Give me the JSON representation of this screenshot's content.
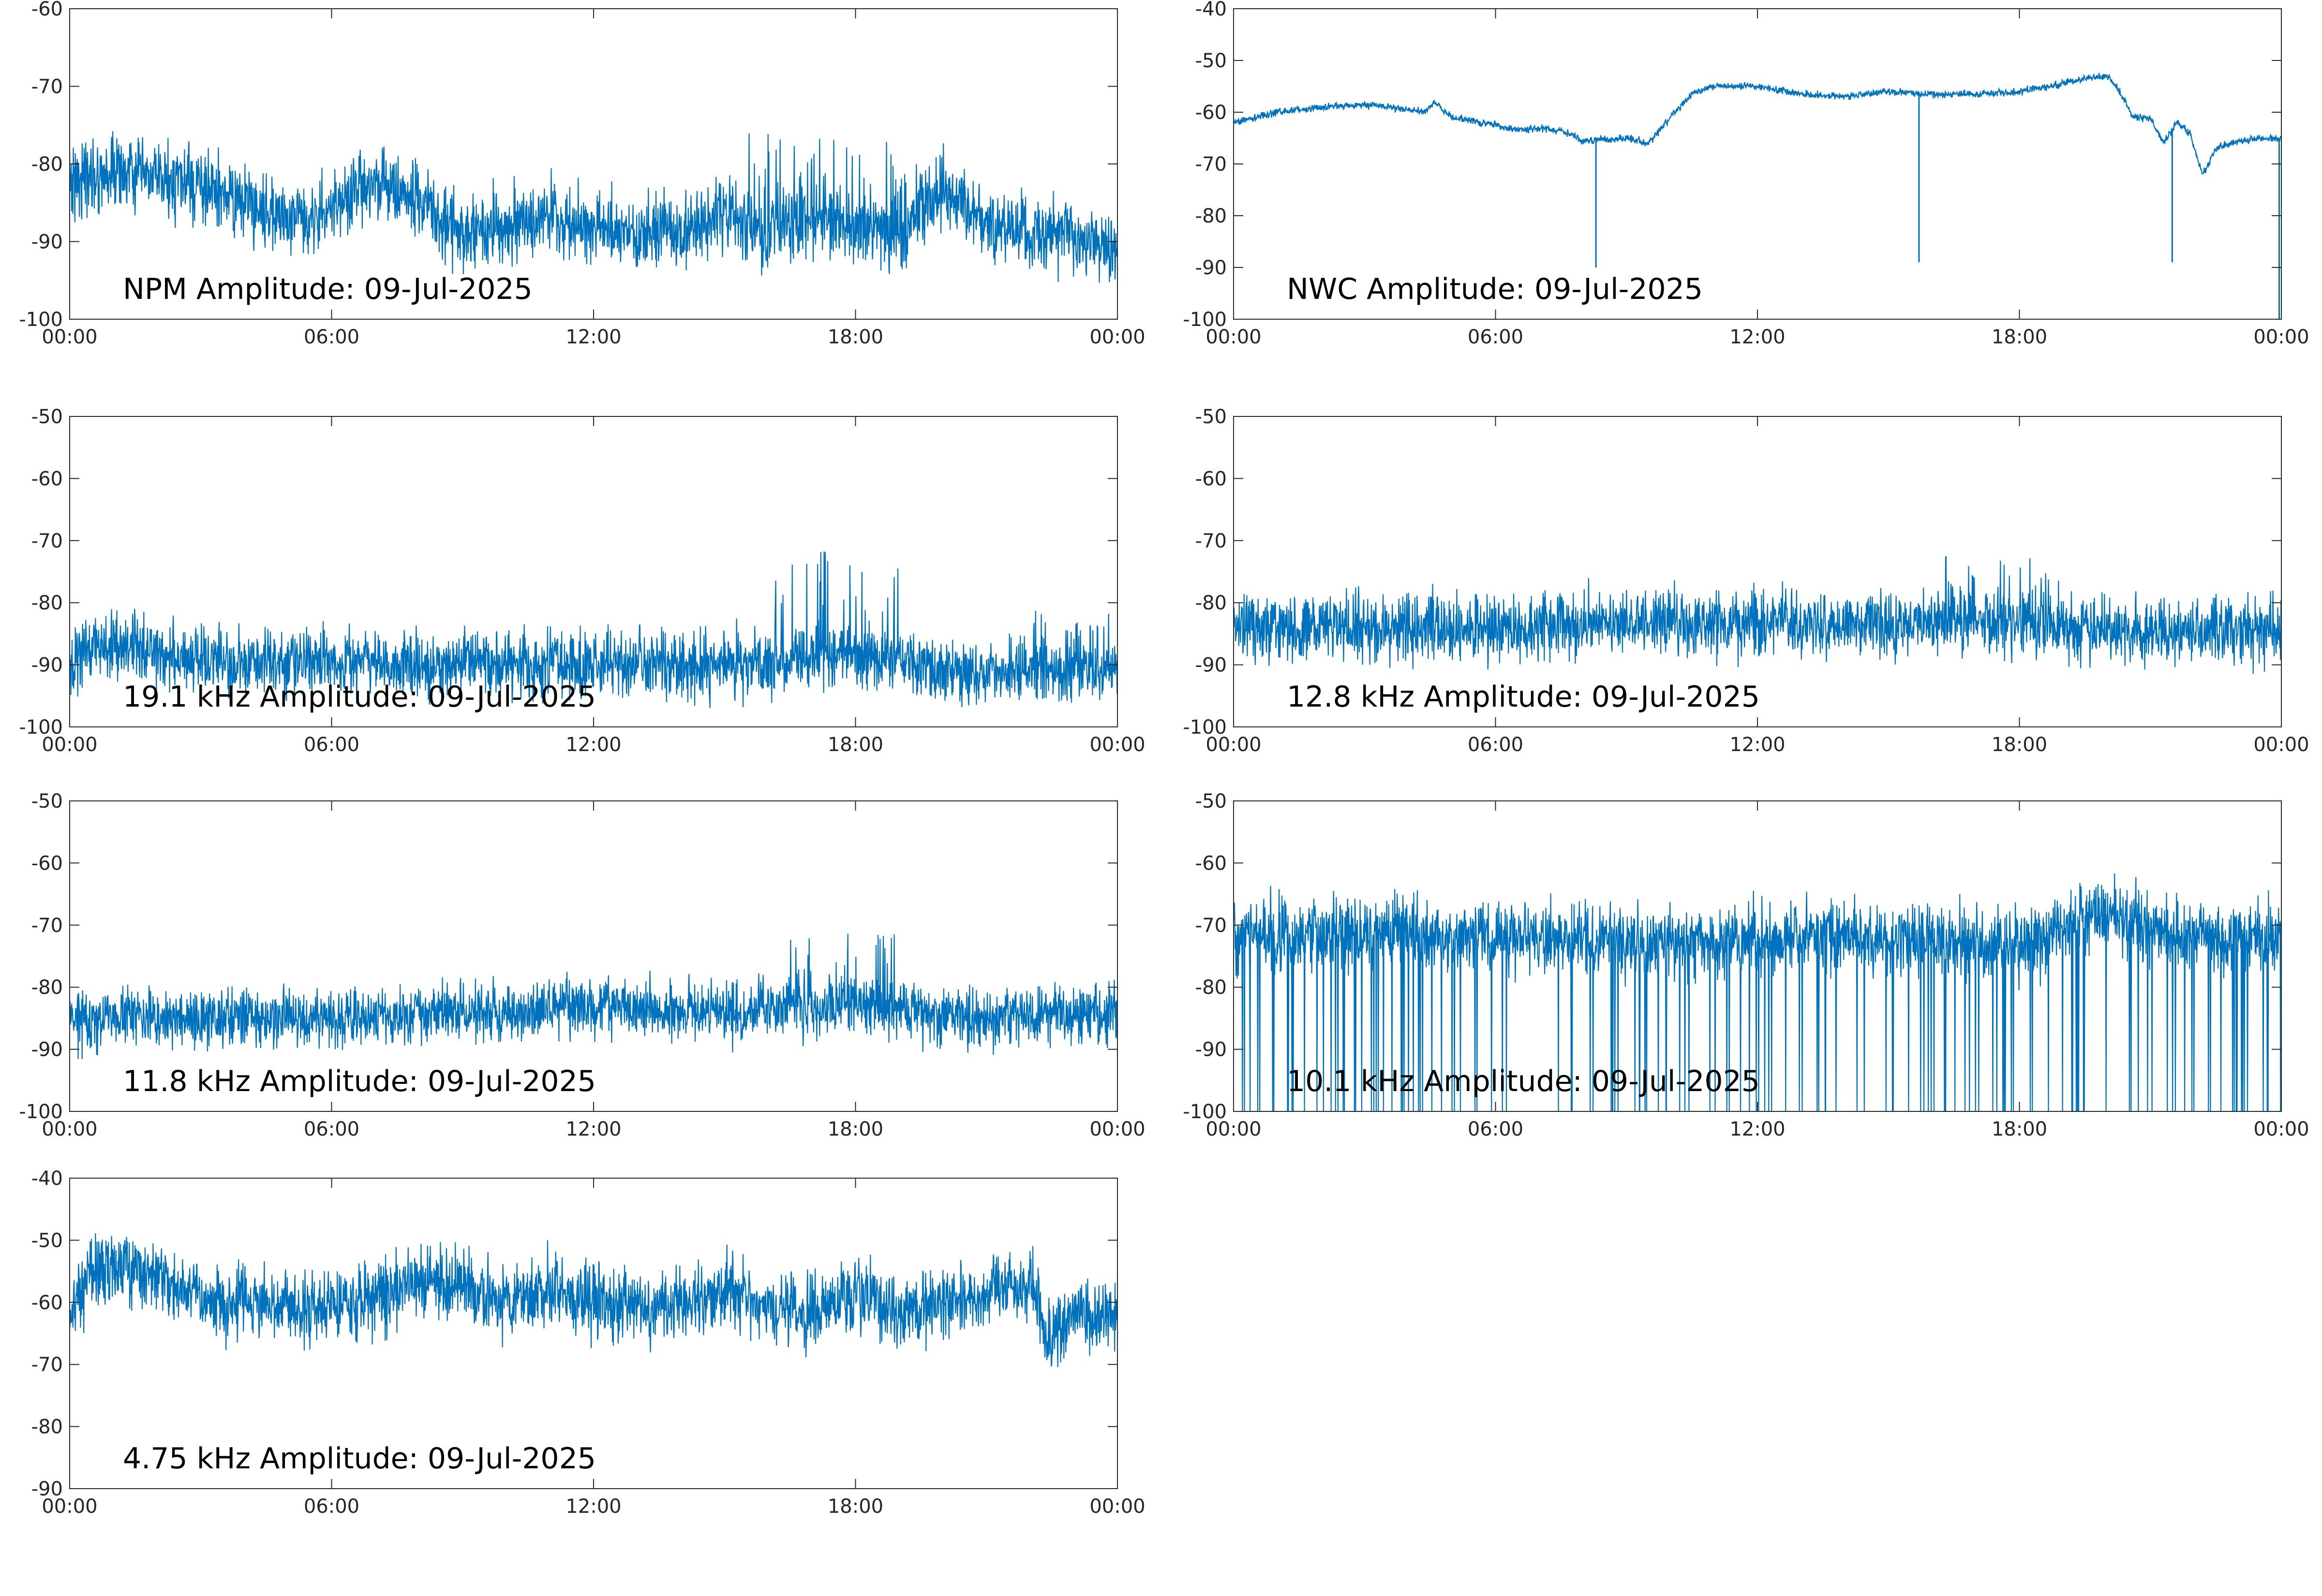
{
  "figure": {
    "colors": {
      "line": "#0072BD",
      "axis": "#262626",
      "text": "#000000",
      "background": "#ffffff"
    }
  },
  "chart_data": [
    {
      "type": "line",
      "annotation": "NPM Amplitude: 09-Jul-2025",
      "xticklabels": [
        "00:00",
        "06:00",
        "12:00",
        "18:00",
        "00:00"
      ],
      "xlim": [
        0,
        24
      ],
      "ylim": [
        -100,
        -60
      ],
      "yticks": [
        -100,
        -90,
        -80,
        -70,
        -60
      ],
      "grid": false,
      "series": [
        {
          "x": [
            0,
            1,
            2,
            3,
            4,
            5,
            6,
            7,
            8,
            9,
            10,
            11,
            12,
            13,
            14,
            15,
            16,
            17,
            18,
            19,
            20,
            21,
            22,
            23,
            24
          ],
          "y": [
            -82,
            -81,
            -82,
            -83,
            -85,
            -87,
            -86,
            -82,
            -85,
            -89,
            -88,
            -87,
            -88,
            -89,
            -89,
            -86,
            -89,
            -87,
            -88,
            -89,
            -83,
            -88,
            -89,
            -89,
            -91
          ],
          "noise": 4,
          "spikes": [
            {
              "from": 15.5,
              "to": 19.5,
              "top": -76
            },
            {
              "from": 6.5,
              "to": 7.3,
              "top": -78
            }
          ]
        }
      ]
    },
    {
      "type": "line",
      "annotation": "NWC Amplitude: 09-Jul-2025",
      "xticklabels": [
        "00:00",
        "06:00",
        "12:00",
        "18:00",
        "00:00"
      ],
      "xlim": [
        0,
        24
      ],
      "ylim": [
        -100,
        -40
      ],
      "yticks": [
        -100,
        -90,
        -80,
        -70,
        -60,
        -50,
        -40
      ],
      "grid": false,
      "series": [
        {
          "x": [
            0,
            1,
            2,
            3,
            4,
            4.4,
            4.6,
            5,
            6,
            6.5,
            7,
            7.5,
            8,
            9,
            9.5,
            10,
            10.5,
            11,
            12,
            13,
            14,
            15,
            16,
            17,
            18,
            19,
            19.5,
            20,
            20.3,
            20.6,
            21,
            21.3,
            21.6,
            21.9,
            22.2,
            22.5,
            22.8,
            23.1,
            23.5,
            24
          ],
          "y": [
            -62,
            -60,
            -59,
            -58.5,
            -59.5,
            -60,
            -58,
            -61,
            -62.5,
            -63.5,
            -63,
            -63.5,
            -65.5,
            -65,
            -66,
            -61,
            -56.5,
            -55,
            -55,
            -56.5,
            -57,
            -56,
            -56.5,
            -56.5,
            -56,
            -54.5,
            -53.5,
            -53,
            -56,
            -61,
            -61,
            -66,
            -62,
            -64,
            -72,
            -67,
            -66,
            -65.5,
            -65,
            -65
          ],
          "noise": 0.6,
          "dips": [
            {
              "x": 8.3,
              "to": -90
            },
            {
              "x": 15.7,
              "to": -89
            },
            {
              "x": 21.5,
              "to": -89
            },
            {
              "x": 23.95,
              "to": -100
            }
          ]
        }
      ]
    },
    {
      "type": "line",
      "annotation": "19.1 kHz Amplitude: 09-Jul-2025",
      "xticklabels": [
        "00:00",
        "06:00",
        "12:00",
        "18:00",
        "00:00"
      ],
      "xlim": [
        0,
        24
      ],
      "ylim": [
        -100,
        -50
      ],
      "yticks": [
        -100,
        -90,
        -80,
        -70,
        -60,
        -50
      ],
      "grid": false,
      "series": [
        {
          "x": [
            0,
            0.5,
            1.5,
            2.5,
            4,
            6,
            8,
            10,
            12,
            14,
            16,
            18,
            20,
            22,
            24
          ],
          "y": [
            -90,
            -87,
            -87,
            -89,
            -90,
            -89,
            -90,
            -90,
            -90,
            -90,
            -90,
            -89,
            -91,
            -91,
            -91
          ],
          "noise": 4.5,
          "spikes": [
            {
              "from": 16,
              "to": 19,
              "top": -71
            },
            {
              "from": 22,
              "to": 24,
              "top": -81
            }
          ]
        }
      ]
    },
    {
      "type": "line",
      "annotation": "12.8 kHz Amplitude: 09-Jul-2025",
      "xticklabels": [
        "00:00",
        "06:00",
        "12:00",
        "18:00",
        "00:00"
      ],
      "xlim": [
        0,
        24
      ],
      "ylim": [
        -100,
        -50
      ],
      "yticks": [
        -100,
        -90,
        -80,
        -70,
        -60,
        -50
      ],
      "grid": false,
      "series": [
        {
          "x": [
            0,
            3,
            6,
            9,
            12,
            15,
            18,
            21,
            24
          ],
          "y": [
            -84,
            -84,
            -84,
            -83,
            -83,
            -84,
            -83,
            -85,
            -84
          ],
          "noise": 4.5,
          "spikes": [
            {
              "from": 16,
              "to": 19,
              "top": -71
            }
          ]
        }
      ]
    },
    {
      "type": "line",
      "annotation": "11.8 kHz Amplitude: 09-Jul-2025",
      "xticklabels": [
        "00:00",
        "06:00",
        "12:00",
        "18:00",
        "00:00"
      ],
      "xlim": [
        0,
        24
      ],
      "ylim": [
        -100,
        -50
      ],
      "yticks": [
        -100,
        -90,
        -80,
        -70,
        -60,
        -50
      ],
      "grid": false,
      "series": [
        {
          "x": [
            0,
            3,
            6,
            9,
            12,
            15,
            18,
            21,
            24
          ],
          "y": [
            -85,
            -85,
            -85,
            -84,
            -83,
            -84,
            -83,
            -85,
            -84
          ],
          "noise": 4,
          "spikes": [
            {
              "from": 16.5,
              "to": 19,
              "top": -70
            }
          ]
        }
      ]
    },
    {
      "type": "line",
      "annotation": "10.1 kHz Amplitude: 09-Jul-2025",
      "xticklabels": [
        "00:00",
        "06:00",
        "12:00",
        "18:00",
        "00:00"
      ],
      "xlim": [
        0,
        24
      ],
      "ylim": [
        -100,
        -50
      ],
      "yticks": [
        -100,
        -90,
        -80,
        -70,
        -60,
        -50
      ],
      "grid": false,
      "series": [
        {
          "x": [
            0,
            3,
            6,
            9,
            12,
            15,
            18,
            20,
            21,
            24
          ],
          "y": [
            -72,
            -71,
            -72,
            -73,
            -72,
            -72,
            -73,
            -68,
            -71,
            -72
          ],
          "noise": 5,
          "deep_dips": true
        }
      ]
    },
    {
      "type": "line",
      "annotation": "4.75 kHz Amplitude: 09-Jul-2025",
      "xticklabels": [
        "00:00",
        "06:00",
        "12:00",
        "18:00",
        "00:00"
      ],
      "xlim": [
        0,
        24
      ],
      "ylim": [
        -90,
        -40
      ],
      "yticks": [
        -90,
        -80,
        -70,
        -60,
        -50,
        -40
      ],
      "grid": false,
      "series": [
        {
          "x": [
            0,
            0.5,
            1,
            2,
            3,
            4,
            5,
            6,
            7,
            8,
            9,
            10,
            11,
            12,
            13,
            14,
            15,
            16,
            17,
            18,
            19,
            20,
            21,
            22,
            22.5,
            23,
            24
          ],
          "y": [
            -60,
            -55,
            -54,
            -55,
            -60,
            -60,
            -61,
            -60,
            -59,
            -57,
            -57,
            -60,
            -58,
            -60,
            -60,
            -61,
            -58,
            -60,
            -62,
            -58,
            -62,
            -60,
            -58,
            -57,
            -66,
            -62,
            -63
          ],
          "noise": 5
        }
      ]
    }
  ]
}
